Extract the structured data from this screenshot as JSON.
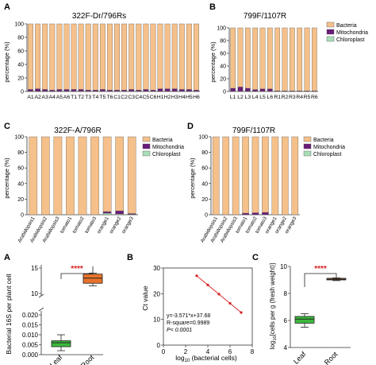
{
  "colors": {
    "bacteria": "#F5C08A",
    "mitochondria": "#6A1B7A",
    "chloroplast": "#A9DDB7",
    "bar_edge": "#555555",
    "box_leaf": "#3DB83D",
    "box_root": "#E8732A",
    "sig": "#D62020",
    "line": "#D62020"
  },
  "chart_data": [
    {
      "id": "A_top",
      "type": "bar",
      "stacked": true,
      "panel_label": "A",
      "title": "322F-Dr/796Rs",
      "ylabel": "percentage (%)",
      "ylim": [
        0,
        100
      ],
      "yticks": [
        "0",
        "20",
        "40",
        "60",
        "80",
        "100"
      ],
      "categories": [
        "A1",
        "A2",
        "A3",
        "A4",
        "A5",
        "A6",
        "T1",
        "T2",
        "T3",
        "T4",
        "T5",
        "T6",
        "C1",
        "C2",
        "C3",
        "C4",
        "C5",
        "C6",
        "H1",
        "H2",
        "H3",
        "H4",
        "H5",
        "H6"
      ],
      "series": [
        {
          "name": "Bacteria",
          "values": [
            97,
            96,
            97,
            98,
            97,
            97,
            97,
            97,
            98,
            98,
            97,
            98,
            98,
            98,
            97,
            98,
            97,
            98,
            96,
            96,
            96,
            97,
            97,
            98
          ]
        },
        {
          "name": "Mitochondria",
          "values": [
            2.5,
            3.5,
            2.5,
            1.5,
            2.5,
            2.5,
            2.5,
            2.5,
            1.5,
            1.5,
            2.5,
            1.5,
            1.5,
            1.5,
            2.5,
            1.5,
            2.5,
            1.5,
            3.5,
            3.5,
            3.5,
            2.5,
            2.5,
            1.5
          ]
        },
        {
          "name": "Chloroplast",
          "values": [
            0.5,
            0.5,
            0.5,
            0.5,
            0.5,
            0.5,
            0.5,
            0.5,
            0.5,
            0.5,
            0.5,
            0.5,
            0.5,
            0.5,
            0.5,
            0.5,
            0.5,
            0.5,
            0.5,
            0.5,
            0.5,
            0.5,
            0.5,
            0.5
          ]
        }
      ]
    },
    {
      "id": "B_top",
      "type": "bar",
      "stacked": true,
      "panel_label": "B",
      "title": "799F/1107R",
      "ylabel": "percentage (%)",
      "ylim": [
        0,
        100
      ],
      "yticks": [
        "0",
        "20",
        "40",
        "60",
        "80",
        "100"
      ],
      "categories": [
        "L1",
        "L2",
        "L3",
        "L4",
        "L5",
        "L6",
        "R1",
        "R2",
        "R3",
        "R4",
        "R5",
        "R6"
      ],
      "legend": [
        "Bacteria",
        "Mitochondria",
        "Chloroplast"
      ],
      "series": [
        {
          "name": "Bacteria",
          "values": [
            95,
            93,
            95,
            97,
            96,
            96,
            99,
            99,
            99,
            99,
            99,
            99
          ]
        },
        {
          "name": "Mitochondria",
          "values": [
            4.5,
            6.5,
            4.5,
            2.5,
            3.5,
            3.5,
            0.8,
            0.8,
            0.8,
            0.8,
            0.8,
            0.8
          ]
        },
        {
          "name": "Chloroplast",
          "values": [
            0.5,
            0.5,
            0.5,
            0.5,
            0.5,
            0.5,
            0.2,
            0.2,
            0.2,
            0.2,
            0.2,
            0.2
          ]
        }
      ]
    },
    {
      "id": "C_mid",
      "type": "bar",
      "stacked": true,
      "panel_label": "C",
      "title": "322F-A/796R",
      "ylabel": "percentage (%)",
      "ylim": [
        0,
        100
      ],
      "yticks": [
        "0",
        "20",
        "40",
        "60",
        "80",
        "100"
      ],
      "categories": [
        "Arabidopsis1",
        "Arabidopsis2",
        "Arabidopsis3",
        "tomato1",
        "tomato2",
        "tomato3",
        "orange1",
        "orange2",
        "orange3"
      ],
      "legend": [
        "Bacteria",
        "Mitochondria",
        "Chloroplast"
      ],
      "series": [
        {
          "name": "Bacteria",
          "values": [
            100,
            100,
            100,
            100,
            100,
            100,
            96,
            95,
            98.5
          ]
        },
        {
          "name": "Mitochondria",
          "values": [
            0,
            0,
            0,
            0,
            0,
            0,
            2,
            4,
            1
          ]
        },
        {
          "name": "Chloroplast",
          "values": [
            0,
            0,
            0,
            0,
            0,
            0,
            2,
            1,
            0.5
          ]
        }
      ]
    },
    {
      "id": "D_mid",
      "type": "bar",
      "stacked": true,
      "panel_label": "D",
      "title": "799F/1107R",
      "ylabel": "percentage (%)",
      "ylim": [
        0,
        100
      ],
      "yticks": [
        "0",
        "20",
        "40",
        "60",
        "80",
        "100"
      ],
      "categories": [
        "Arabidopsis1",
        "Arabidopsis2",
        "Arabidopsis3",
        "tomato1",
        "tomato2",
        "tomato3",
        "orange1",
        "orange2",
        "orange3"
      ],
      "legend": [
        "Bacteria",
        "Mitochondria",
        "Chloroplast"
      ],
      "series": [
        {
          "name": "Bacteria",
          "values": [
            100,
            100,
            100,
            98,
            97.5,
            97,
            100,
            100,
            100
          ]
        },
        {
          "name": "Mitochondria",
          "values": [
            0,
            0,
            0,
            2,
            2.5,
            3,
            0,
            0,
            0
          ]
        },
        {
          "name": "Chloroplast",
          "values": [
            0,
            0,
            0,
            0,
            0,
            0,
            0,
            0,
            0
          ]
        }
      ]
    },
    {
      "id": "A_bottom",
      "type": "box",
      "panel_label": "A",
      "ylabel": "Bacterial 16S  per plant cell",
      "significance": "****",
      "yticks_top": [
        "10",
        "15"
      ],
      "yticks_bottom": [
        "0.000",
        "0.005",
        "0.010",
        "0.015",
        "0.020"
      ],
      "categories": [
        "Leaf",
        "Root"
      ],
      "boxes": [
        {
          "name": "Leaf",
          "min": 0.002,
          "q1": 0.004,
          "median": 0.006,
          "q3": 0.007,
          "max": 0.01
        },
        {
          "name": "Root",
          "min": 11.5,
          "q1": 12.0,
          "median": 13.0,
          "q3": 13.8,
          "max": 14.0
        }
      ]
    },
    {
      "id": "B_bottom",
      "type": "scatter",
      "panel_label": "B",
      "xlabel": "log10 (bacterial cells)",
      "ylabel": "Ct value",
      "xlim": [
        0,
        8
      ],
      "ylim": [
        0,
        30
      ],
      "xticks": [
        "0",
        "2",
        "4",
        "6",
        "8"
      ],
      "yticks": [
        "0",
        "10",
        "20",
        "30"
      ],
      "x": [
        3,
        4,
        5,
        6,
        7
      ],
      "y": [
        26.97,
        23.4,
        19.83,
        16.25,
        12.68
      ],
      "annotations": [
        "y=-3.571*x+37.68",
        "R-square=0.9989",
        "P< 0.0001"
      ]
    },
    {
      "id": "C_bottom",
      "type": "box",
      "panel_label": "C",
      "ylabel": "log10[cells per g (fresh weight)]",
      "significance": "****",
      "ylim": [
        4,
        10
      ],
      "yticks": [
        "4",
        "6",
        "8",
        "10"
      ],
      "categories": [
        "Leaf",
        "Root"
      ],
      "boxes": [
        {
          "name": "Leaf",
          "min": 5.5,
          "q1": 5.8,
          "median": 6.1,
          "q3": 6.3,
          "max": 6.5
        },
        {
          "name": "Root",
          "min": 8.95,
          "q1": 9.0,
          "median": 9.05,
          "q3": 9.12,
          "max": 9.15
        }
      ]
    }
  ]
}
